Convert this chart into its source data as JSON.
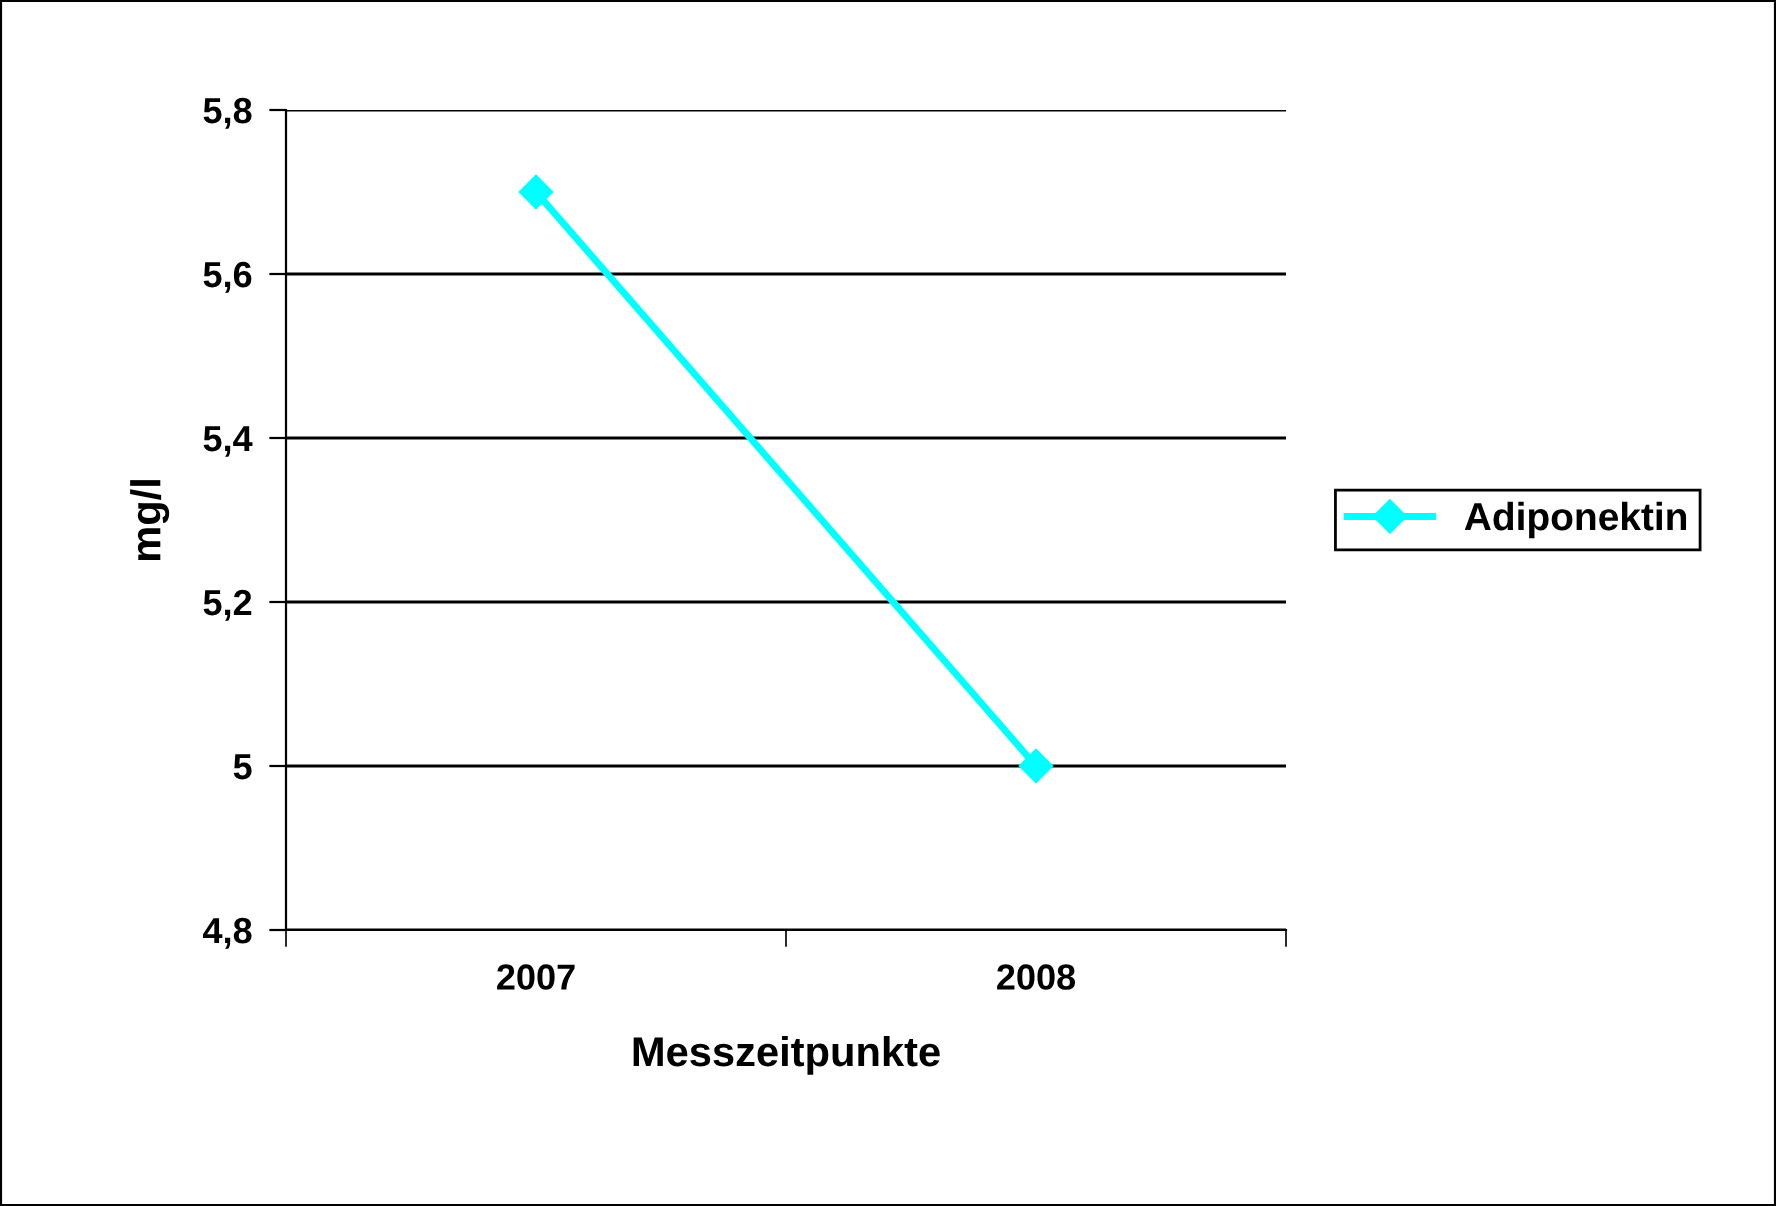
{
  "chart_data": {
    "type": "line",
    "xlabel": "Messzeitpunkte",
    "ylabel": "mg/l",
    "categories": [
      "2007",
      "2008"
    ],
    "series": [
      {
        "name": "Adiponektin",
        "color": "#00ffff",
        "values": [
          5.7,
          5.0
        ]
      }
    ],
    "ylim": [
      4.8,
      5.8
    ],
    "yticks": [
      {
        "value": 4.8,
        "label": "4,8"
      },
      5,
      {
        "value": 5.2,
        "label": "5,2"
      },
      {
        "value": 5.4,
        "label": "5,4"
      },
      {
        "value": 5.6,
        "label": "5,6"
      },
      {
        "value": 5.8,
        "label": "5,8"
      }
    ],
    "grid": "y",
    "legend": "right",
    "marker": "diamond",
    "line_style": "solid"
  }
}
